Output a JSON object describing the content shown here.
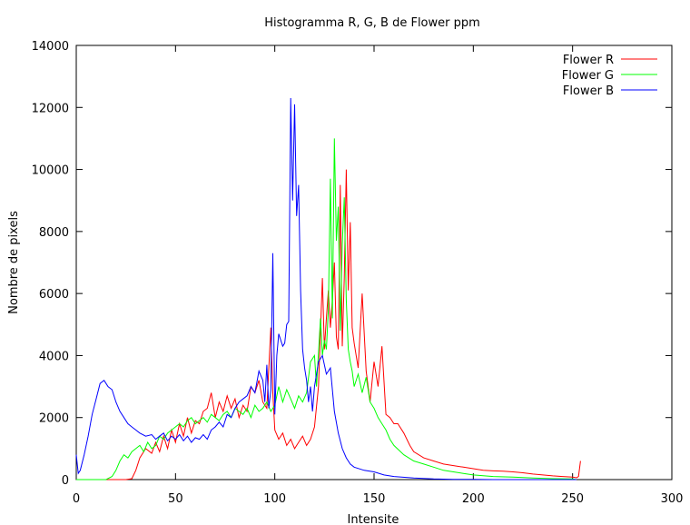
{
  "chart_data": {
    "type": "line",
    "title": "Histogramma R, G, B de Flower ppm",
    "xlabel": "Intensite",
    "ylabel": "Nombre de pixels",
    "xlim": [
      0,
      300
    ],
    "ylim": [
      0,
      14000
    ],
    "xticks": [
      0,
      50,
      100,
      150,
      200,
      250,
      300
    ],
    "yticks": [
      0,
      2000,
      4000,
      6000,
      8000,
      10000,
      12000,
      14000
    ],
    "grid": false,
    "legend": "top-right",
    "series": [
      {
        "name": "Flower R",
        "color": "#ff0000",
        "x": [
          0,
          5,
          10,
          15,
          20,
          25,
          28,
          30,
          32,
          35,
          38,
          40,
          42,
          44,
          46,
          48,
          50,
          52,
          54,
          56,
          58,
          60,
          62,
          64,
          66,
          68,
          70,
          72,
          74,
          76,
          78,
          80,
          82,
          84,
          86,
          88,
          90,
          92,
          94,
          96,
          98,
          99,
          100,
          102,
          104,
          106,
          108,
          110,
          112,
          114,
          116,
          118,
          120,
          122,
          124,
          125,
          126,
          127,
          128,
          129,
          130,
          131,
          132,
          133,
          134,
          135,
          136,
          137,
          138,
          139,
          140,
          142,
          144,
          146,
          148,
          150,
          152,
          154,
          156,
          158,
          160,
          162,
          165,
          168,
          170,
          175,
          180,
          185,
          190,
          195,
          200,
          205,
          210,
          215,
          220,
          225,
          230,
          235,
          240,
          245,
          250,
          252,
          253,
          254
        ],
        "y": [
          0,
          0,
          0,
          0,
          0,
          0,
          30,
          300,
          700,
          1000,
          850,
          1200,
          900,
          1400,
          1000,
          1600,
          1200,
          1800,
          1400,
          2000,
          1500,
          1900,
          1800,
          2200,
          2300,
          2800,
          2000,
          2500,
          2200,
          2700,
          2300,
          2600,
          2000,
          2400,
          2200,
          3000,
          2800,
          3200,
          2500,
          2300,
          4900,
          2800,
          1600,
          1300,
          1500,
          1100,
          1300,
          1000,
          1200,
          1400,
          1100,
          1300,
          1700,
          3000,
          6500,
          4200,
          5200,
          6100,
          4900,
          5800,
          7000,
          4600,
          4200,
          9500,
          4300,
          6500,
          10000,
          6100,
          8300,
          4900,
          4400,
          3600,
          6000,
          3500,
          2500,
          3800,
          3000,
          4300,
          2100,
          2000,
          1800,
          1800,
          1500,
          1100,
          900,
          700,
          600,
          500,
          450,
          400,
          350,
          300,
          280,
          270,
          250,
          220,
          180,
          150,
          120,
          100,
          80,
          60,
          100,
          600
        ]
      },
      {
        "name": "Flower G",
        "color": "#00ff00",
        "x": [
          0,
          5,
          10,
          15,
          18,
          20,
          22,
          24,
          26,
          28,
          30,
          32,
          34,
          36,
          38,
          40,
          42,
          44,
          46,
          48,
          50,
          52,
          54,
          56,
          58,
          60,
          62,
          64,
          66,
          68,
          70,
          72,
          74,
          76,
          78,
          80,
          82,
          84,
          86,
          88,
          90,
          92,
          94,
          96,
          98,
          100,
          102,
          104,
          106,
          108,
          110,
          112,
          114,
          116,
          118,
          120,
          121,
          122,
          123,
          124,
          125,
          126,
          127,
          128,
          129,
          130,
          131,
          132,
          133,
          134,
          135,
          136,
          137,
          138,
          139,
          140,
          142,
          144,
          146,
          148,
          150,
          152,
          154,
          156,
          158,
          160,
          165,
          170,
          175,
          180,
          185,
          190,
          195,
          200,
          210,
          220,
          230,
          240,
          250,
          252
        ],
        "y": [
          0,
          0,
          0,
          0,
          100,
          300,
          600,
          800,
          700,
          900,
          1000,
          1100,
          900,
          1200,
          1000,
          1100,
          1400,
          1300,
          1500,
          1600,
          1700,
          1800,
          1700,
          1900,
          2000,
          1800,
          1900,
          2000,
          1850,
          2100,
          2000,
          1900,
          2100,
          2200,
          2000,
          2300,
          2200,
          2100,
          2300,
          2000,
          2400,
          2200,
          2300,
          2500,
          2200,
          2400,
          3000,
          2500,
          2900,
          2600,
          2300,
          2700,
          2500,
          2800,
          3800,
          4000,
          3000,
          4100,
          5200,
          4000,
          4500,
          4200,
          5500,
          9700,
          5200,
          11000,
          7700,
          8800,
          4800,
          7600,
          9100,
          5800,
          4200,
          3800,
          3500,
          3000,
          3400,
          2800,
          3300,
          2500,
          2300,
          2000,
          1800,
          1600,
          1300,
          1100,
          800,
          600,
          500,
          400,
          300,
          250,
          200,
          150,
          100,
          80,
          50,
          30,
          20,
          0
        ]
      },
      {
        "name": "Flower B",
        "color": "#0000ff",
        "x": [
          0,
          1,
          2,
          4,
          6,
          8,
          10,
          12,
          14,
          15,
          16,
          18,
          20,
          22,
          24,
          26,
          28,
          30,
          32,
          35,
          38,
          40,
          42,
          44,
          46,
          48,
          50,
          52,
          54,
          56,
          58,
          60,
          62,
          64,
          66,
          68,
          70,
          72,
          74,
          76,
          78,
          80,
          82,
          84,
          86,
          88,
          90,
          92,
          94,
          95,
          96,
          97,
          98,
          99,
          100,
          101,
          102,
          104,
          105,
          106,
          107,
          108,
          109,
          110,
          111,
          112,
          113,
          114,
          115,
          116,
          117,
          118,
          119,
          120,
          122,
          124,
          126,
          128,
          130,
          132,
          134,
          136,
          138,
          140,
          145,
          150,
          155,
          160,
          170,
          180,
          190,
          200,
          210,
          220,
          230,
          240,
          250,
          252
        ],
        "y": [
          800,
          200,
          300,
          800,
          1400,
          2100,
          2600,
          3100,
          3200,
          3100,
          3000,
          2900,
          2500,
          2200,
          2000,
          1800,
          1700,
          1600,
          1500,
          1400,
          1450,
          1300,
          1400,
          1500,
          1250,
          1400,
          1300,
          1450,
          1250,
          1400,
          1200,
          1350,
          1300,
          1450,
          1300,
          1600,
          1700,
          1850,
          1700,
          2100,
          2000,
          2300,
          2500,
          2600,
          2700,
          3000,
          2800,
          3500,
          3200,
          2500,
          3700,
          2300,
          2900,
          7300,
          2100,
          4000,
          4700,
          4300,
          4400,
          5000,
          5100,
          12300,
          9000,
          12100,
          8500,
          9500,
          6100,
          4200,
          3600,
          3200,
          2500,
          3000,
          2200,
          3000,
          3800,
          4000,
          3400,
          3600,
          2200,
          1500,
          1000,
          700,
          500,
          400,
          300,
          250,
          150,
          100,
          50,
          20,
          10,
          5,
          0,
          0,
          0,
          0,
          0,
          0
        ]
      }
    ]
  }
}
